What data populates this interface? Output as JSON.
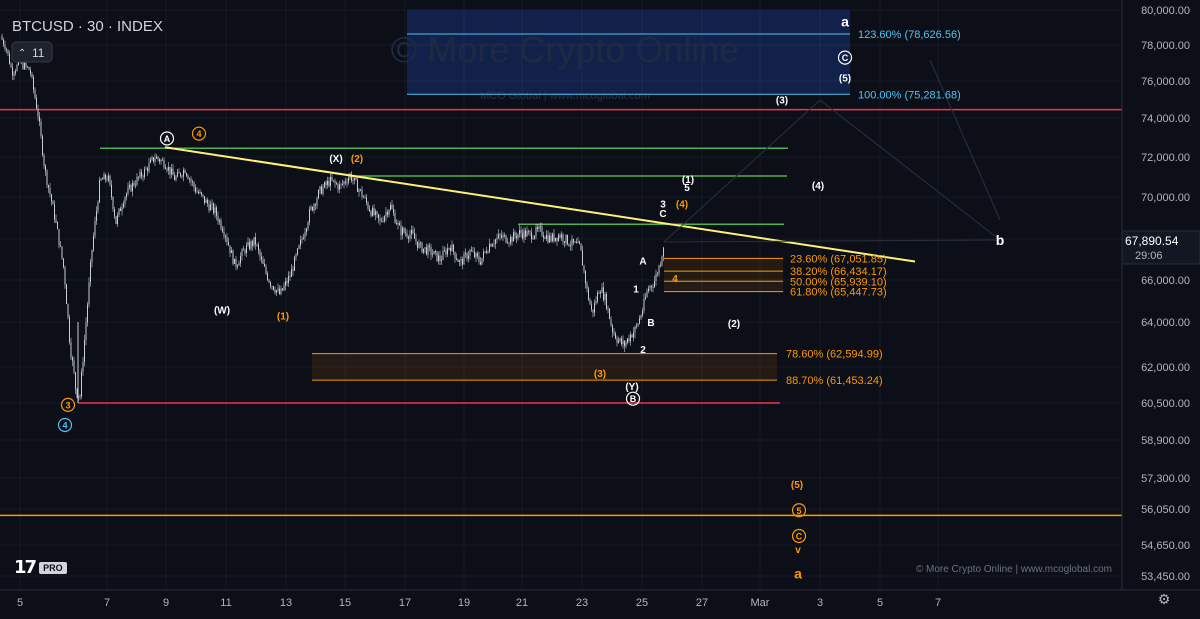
{
  "header": {
    "symbol": "BTCUSD · 30 · INDEX",
    "indicator_count": "11"
  },
  "watermark": {
    "main": "© More Crypto Online",
    "sub": "MCO Global  |  www.mcoglobal.com",
    "footer": "© More Crypto Online   |   www.mcoglobal.com"
  },
  "logo": {
    "mark": "17",
    "badge": "PRO"
  },
  "colors": {
    "bg": "#0c0f17",
    "grid": "#151a26",
    "candle": "#c8ccd4",
    "red": "#f23645",
    "green": "#4caf50",
    "yellow": "#fff176",
    "orange": "#ff9800",
    "blue": "#4fc3f7",
    "white": "#ffffff",
    "axis_text": "#b2b5be"
  },
  "price_badge": {
    "price": "67,890.54",
    "countdown": "29:06"
  },
  "chart_data": {
    "type": "candlestick",
    "symbol": "BTCUSD",
    "timeframe": "30",
    "x_ticks": [
      "5",
      "7",
      "9",
      "11",
      "13",
      "15",
      "17",
      "19",
      "21",
      "23",
      "25",
      "27",
      "Mar",
      "3",
      "5",
      "7"
    ],
    "y_ticks": [
      80000,
      78000,
      76000,
      74000,
      72000,
      70000,
      68000,
      66000,
      64000,
      62000,
      60500,
      58900,
      57300,
      56050,
      54650,
      53450
    ],
    "y_tick_labels": [
      "80,000.00",
      "78,000.00",
      "76,000.00",
      "74,000.00",
      "72,000.00",
      "70,000.00",
      "68,000.00",
      "66,000.00",
      "64,000.00",
      "62,000.00",
      "60,500.00",
      "58,900.00",
      "57,300.00",
      "56,050.00",
      "54,650.00",
      "53,450.00"
    ],
    "price_path": [
      [
        0,
        78500
      ],
      [
        6,
        77900
      ],
      [
        12,
        76500
      ],
      [
        20,
        77000
      ],
      [
        30,
        76600
      ],
      [
        38,
        74200
      ],
      [
        45,
        71300
      ],
      [
        55,
        69000
      ],
      [
        64,
        66500
      ],
      [
        70,
        63000
      ],
      [
        76,
        61000
      ],
      [
        80,
        60800
      ],
      [
        86,
        64000
      ],
      [
        92,
        67500
      ],
      [
        100,
        70800
      ],
      [
        108,
        71000
      ],
      [
        116,
        68800
      ],
      [
        124,
        70000
      ],
      [
        134,
        70700
      ],
      [
        145,
        71300
      ],
      [
        155,
        72000
      ],
      [
        165,
        71700
      ],
      [
        175,
        70900
      ],
      [
        185,
        71400
      ],
      [
        195,
        70400
      ],
      [
        205,
        69800
      ],
      [
        215,
        69300
      ],
      [
        225,
        68300
      ],
      [
        235,
        66700
      ],
      [
        245,
        67500
      ],
      [
        255,
        67900
      ],
      [
        262,
        66800
      ],
      [
        270,
        65900
      ],
      [
        280,
        65300
      ],
      [
        290,
        66200
      ],
      [
        300,
        67700
      ],
      [
        310,
        69300
      ],
      [
        320,
        70300
      ],
      [
        330,
        70800
      ],
      [
        340,
        70500
      ],
      [
        350,
        71100
      ],
      [
        360,
        70300
      ],
      [
        370,
        69400
      ],
      [
        380,
        68800
      ],
      [
        390,
        69600
      ],
      [
        400,
        68400
      ],
      [
        412,
        68200
      ],
      [
        420,
        67600
      ],
      [
        430,
        67400
      ],
      [
        440,
        67000
      ],
      [
        450,
        67700
      ],
      [
        460,
        66800
      ],
      [
        470,
        67400
      ],
      [
        480,
        66900
      ],
      [
        490,
        67800
      ],
      [
        500,
        68100
      ],
      [
        510,
        68000
      ],
      [
        520,
        68300
      ],
      [
        530,
        68200
      ],
      [
        540,
        68400
      ],
      [
        550,
        68000
      ],
      [
        560,
        68200
      ],
      [
        570,
        67800
      ],
      [
        580,
        67600
      ],
      [
        587,
        65500
      ],
      [
        592,
        64400
      ],
      [
        600,
        65700
      ],
      [
        606,
        65000
      ],
      [
        612,
        63700
      ],
      [
        618,
        63200
      ],
      [
        624,
        62950
      ],
      [
        630,
        63400
      ],
      [
        636,
        63700
      ],
      [
        642,
        64500
      ],
      [
        648,
        65600
      ],
      [
        654,
        65900
      ],
      [
        660,
        66800
      ],
      [
        664,
        67850
      ]
    ],
    "horizontal_levels": [
      {
        "price": 74450,
        "color": "red",
        "x1": 0,
        "x2": 1122
      },
      {
        "price": 60500,
        "color": "red",
        "x1": 78,
        "x2": 780
      },
      {
        "price": 55800,
        "color": "orange",
        "x1": 0,
        "x2": 1122
      },
      {
        "price": 72450,
        "color": "green",
        "x1": 100,
        "x2": 788
      },
      {
        "price": 71050,
        "color": "green",
        "x1": 350,
        "x2": 787
      },
      {
        "price": 68700,
        "color": "green",
        "x1": 518,
        "x2": 784
      }
    ],
    "trendline": {
      "from": [
        165,
        72500
      ],
      "to": [
        915,
        66900
      ],
      "color": "yellow"
    },
    "fib_levels": [
      {
        "label": "123.60% (78,626.56)",
        "price": 78626.56,
        "color": "blue"
      },
      {
        "label": "100.00% (75,281.68)",
        "price": 75281.68,
        "color": "blue"
      },
      {
        "label": "23.60% (67,051.85)",
        "price": 67051.85,
        "color": "orange"
      },
      {
        "label": "38.20% (66,434.17)",
        "price": 66434.17,
        "color": "orange"
      },
      {
        "label": "50.00% (65,939.10)",
        "price": 65939.1,
        "color": "orange"
      },
      {
        "label": "61.80% (65,447.73)",
        "price": 65447.73,
        "color": "orange"
      },
      {
        "label": "78.60% (62,594.99)",
        "price": 62594.99,
        "color": "orange"
      },
      {
        "label": "88.70% (61,453.24)",
        "price": 61453.24,
        "color": "orange"
      }
    ],
    "zones": [
      {
        "price_top": 80000,
        "price_bottom": 75281.68,
        "x1": 407,
        "x2": 850,
        "color": "blue"
      },
      {
        "price_top": 67051.85,
        "price_bottom": 65447.73,
        "x1": 664,
        "x2": 783,
        "color": "orange"
      },
      {
        "price_top": 62594.99,
        "price_bottom": 61453.24,
        "x1": 312,
        "x2": 777,
        "color": "orange"
      }
    ],
    "wave_labels": [
      {
        "text": "a",
        "price": 79300,
        "x": 845,
        "color": "white",
        "style": "plain"
      },
      {
        "text": "C",
        "price": 77300,
        "x": 845,
        "color": "white",
        "style": "circle"
      },
      {
        "text": "(5)",
        "price": 76200,
        "x": 845,
        "color": "white",
        "style": "plain"
      },
      {
        "text": "(3)",
        "price": 75000,
        "x": 782,
        "color": "white",
        "style": "plain"
      },
      {
        "text": "(4)",
        "price": 70600,
        "x": 818,
        "color": "white",
        "style": "plain"
      },
      {
        "text": "(1)",
        "price": 70900,
        "x": 688,
        "color": "white",
        "style": "plain"
      },
      {
        "text": "5",
        "price": 70500,
        "x": 687,
        "color": "white",
        "style": "plain"
      },
      {
        "text": "3",
        "price": 69700,
        "x": 663,
        "color": "white",
        "style": "plain"
      },
      {
        "text": "(4)",
        "price": 69700,
        "x": 682,
        "color": "orange",
        "style": "plain"
      },
      {
        "text": "C",
        "price": 69250,
        "x": 663,
        "color": "white",
        "style": "plain"
      },
      {
        "text": "b",
        "price": 67900,
        "x": 1000,
        "color": "white",
        "style": "plain"
      },
      {
        "text": "A",
        "price": 72950,
        "x": 167,
        "color": "white",
        "style": "circle"
      },
      {
        "text": "4",
        "price": 73200,
        "x": 199,
        "color": "orange",
        "style": "circle"
      },
      {
        "text": "(X)",
        "price": 71950,
        "x": 336,
        "color": "white",
        "style": "plain"
      },
      {
        "text": "(2)",
        "price": 71950,
        "x": 357,
        "color": "orange",
        "style": "plain"
      },
      {
        "text": "A",
        "price": 66950,
        "x": 643,
        "color": "white",
        "style": "plain"
      },
      {
        "text": "4",
        "price": 66100,
        "x": 675,
        "color": "orange",
        "style": "plain"
      },
      {
        "text": "1",
        "price": 65600,
        "x": 636,
        "color": "white",
        "style": "plain"
      },
      {
        "text": "B",
        "price": 64000,
        "x": 651,
        "color": "white",
        "style": "plain"
      },
      {
        "text": "(2)",
        "price": 63950,
        "x": 734,
        "color": "white",
        "style": "plain"
      },
      {
        "text": "2",
        "price": 62800,
        "x": 643,
        "color": "white",
        "style": "plain"
      },
      {
        "text": "(W)",
        "price": 64600,
        "x": 222,
        "color": "white",
        "style": "plain"
      },
      {
        "text": "(1)",
        "price": 64300,
        "x": 283,
        "color": "orange",
        "style": "plain"
      },
      {
        "text": "(3)",
        "price": 61750,
        "x": 600,
        "color": "orange",
        "style": "plain"
      },
      {
        "text": "(Y)",
        "price": 61200,
        "x": 632,
        "color": "white",
        "style": "plain"
      },
      {
        "text": "B",
        "price": 60680,
        "x": 633,
        "color": "white",
        "style": "circle"
      },
      {
        "text": "3",
        "price": 60420,
        "x": 68,
        "color": "orange",
        "style": "circle"
      },
      {
        "text": "4",
        "price": 59550,
        "x": 65,
        "color": "blue",
        "style": "circle"
      },
      {
        "text": "(5)",
        "price": 57050,
        "x": 797,
        "color": "orange",
        "style": "plain"
      },
      {
        "text": "5",
        "price": 56000,
        "x": 799,
        "color": "orange",
        "style": "circle"
      },
      {
        "text": "C",
        "price": 55000,
        "x": 799,
        "color": "orange",
        "style": "circle"
      },
      {
        "text": "v",
        "price": 54500,
        "x": 798,
        "color": "orange",
        "style": "plain"
      },
      {
        "text": "a",
        "price": 53500,
        "x": 798,
        "color": "orange",
        "style": "plain"
      }
    ]
  }
}
